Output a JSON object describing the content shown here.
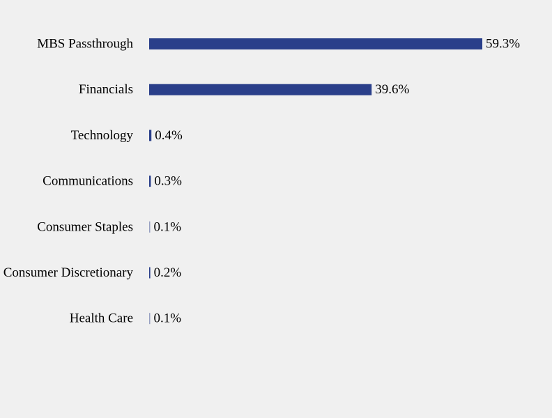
{
  "chart_data": {
    "type": "bar",
    "orientation": "horizontal",
    "categories": [
      "MBS Passthrough",
      "Financials",
      "Technology",
      "Communications",
      "Consumer Staples",
      "Consumer Discretionary",
      "Health Care"
    ],
    "values": [
      59.3,
      39.6,
      0.4,
      0.3,
      0.1,
      0.2,
      0.1
    ],
    "value_labels": [
      "59.3%",
      "39.6%",
      "0.4%",
      "0.3%",
      "0.1%",
      "0.2%",
      "0.1%"
    ],
    "unit": "%",
    "bar_color": "#2a3f8a",
    "title": "",
    "xlabel": "",
    "ylabel": "",
    "grid": false,
    "legend": "none"
  }
}
